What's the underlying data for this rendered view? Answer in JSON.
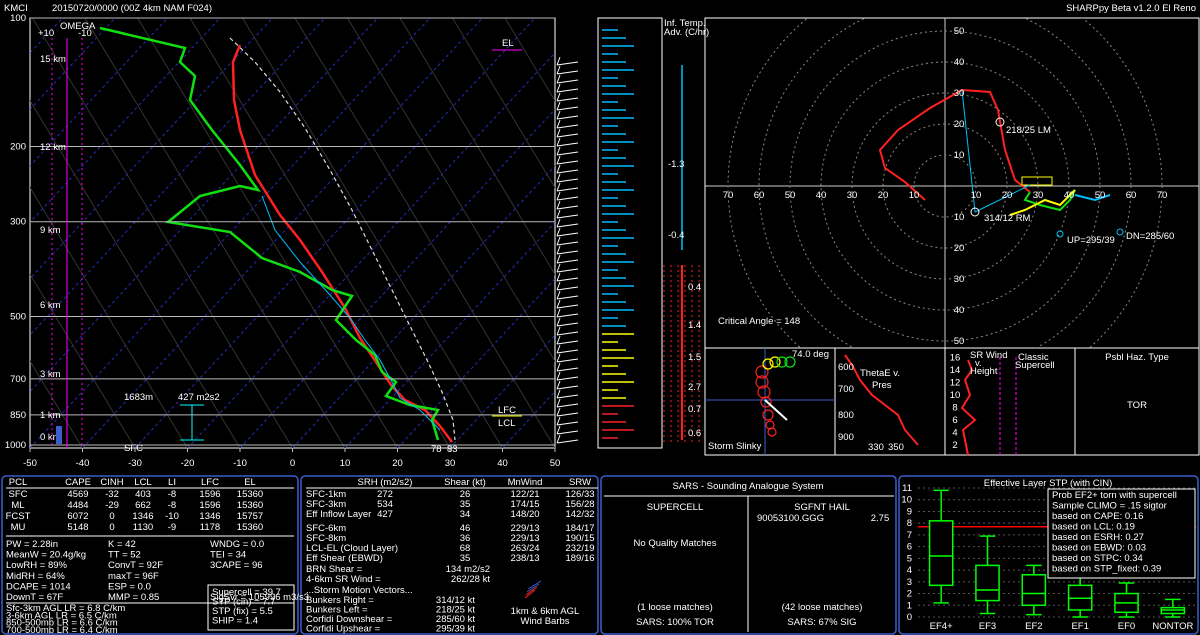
{
  "header": {
    "station": "KMCI",
    "run": "20150720/0000  (00Z  4km NAM  F024)",
    "version": "SHARPpy Beta v1.2.0 El Reno"
  },
  "skewt": {
    "pressure_ticks": [
      100,
      200,
      300,
      500,
      700,
      850,
      1000
    ],
    "temp_ticks": [
      -50,
      -40,
      -30,
      -20,
      -10,
      0,
      10,
      20,
      30,
      40,
      50
    ],
    "height_labels": [
      "15 km",
      "12 km",
      "9 km",
      "6 km",
      "3 km",
      "1 km",
      "0 km"
    ],
    "omega_label": "OMEGA",
    "omega_ticks": [
      "+10",
      "-10"
    ],
    "el": "EL",
    "lfc": "LFC",
    "lcl": "LCL",
    "sfc": "SFC",
    "eff_depth": "1683m",
    "eff_srh": "427 m2s2",
    "sfc_dew": "78",
    "sfc_temp": "83"
  },
  "temp_adv": {
    "title": [
      "Inf. Temp.",
      "Adv. (C/hr)"
    ],
    "values": [
      "-1.3",
      "-0.4",
      "0.4",
      "1.4",
      "1.5",
      "2.7",
      "0.7",
      "0.6"
    ]
  },
  "hodograph": {
    "ticks": [
      10,
      20,
      30,
      40,
      50,
      60,
      70
    ],
    "lm": "218/25 LM",
    "rm": "314/12 RM",
    "up": "UP=295/39",
    "dn": "DN=285/60",
    "critical_angle": "Critical Angle = 148"
  },
  "slinky": {
    "angle": "74.0 deg",
    "label": "Storm Slinky"
  },
  "thetae": {
    "title": [
      "ThetaE v.",
      "Pres"
    ],
    "pressure_ticks": [
      600,
      700,
      800,
      900
    ],
    "theta_ticks": [
      330,
      350
    ]
  },
  "srwind": {
    "title": [
      "SR Wind",
      "v.",
      "Height"
    ],
    "height_ticks": [
      2,
      4,
      6,
      8,
      10,
      12,
      14,
      16
    ],
    "classic": [
      "Classic",
      "Supercell"
    ]
  },
  "hazard": {
    "title": "Psbl Haz. Type",
    "value": "TOR"
  },
  "parcels": {
    "header": [
      "PCL",
      "CAPE",
      "CINH",
      "LCL",
      "LI",
      "LFC",
      "EL"
    ],
    "rows": [
      [
        "SFC",
        "4569",
        "-32",
        "403",
        "-8",
        "1596",
        "15360"
      ],
      [
        "ML",
        "4484",
        "-29",
        "662",
        "-8",
        "1596",
        "15360"
      ],
      [
        "FCST",
        "6072",
        "0",
        "1346",
        "-10",
        "1346",
        "15757"
      ],
      [
        "MU",
        "5148",
        "0",
        "1130",
        "-9",
        "1178",
        "15360"
      ]
    ]
  },
  "indices": [
    [
      "PW = 2.28in",
      "K = 42",
      "WNDG = 0.0"
    ],
    [
      "MeanW = 20.4g/kg",
      "TT = 52",
      "TEI = 34"
    ],
    [
      "LowRH = 89%",
      "ConvT = 92F",
      "3CAPE = 96"
    ],
    [
      "MidRH = 64%",
      "maxT = 96F"
    ],
    [
      "DCAPE = 1014",
      "ESP = 0.0"
    ],
    [
      "DownT = 67F",
      "MMP = 0.85",
      "SigSvr = 105996 m3/s3"
    ]
  ],
  "lapse_rates": [
    "Sfc-3km AGL LR = 6.8 C/km",
    "3-6km AGL LR = 6.5 C/km",
    "850-500mb LR = 6.6 C/km",
    "700-500mb LR = 6.4 C/km"
  ],
  "composites": [
    "Supercell = 39.7",
    "STP (cin) = 7.7",
    "STP (fix) = 5.5",
    "SHIP = 1.4"
  ],
  "kinematics": {
    "header": [
      "SRH (m2/s2)",
      "Shear (kt)",
      "MnWind",
      "SRW"
    ],
    "rows": [
      {
        "label": "SFC-1km",
        "srh": "272",
        "shear": "26",
        "mnwind": "122/21",
        "srw": "126/33"
      },
      {
        "label": "SFC-3km",
        "srh": "534",
        "shear": "35",
        "mnwind": "174/15",
        "srw": "156/28"
      },
      {
        "label": "Eff Inflow Layer",
        "srh": "427",
        "shear": "34",
        "mnwind": "148/20",
        "srw": "142/32"
      },
      {
        "label": "SFC-6km",
        "shear": "46",
        "mnwind": "229/13",
        "srw": "184/17"
      },
      {
        "label": "SFC-8km",
        "shear": "36",
        "mnwind": "229/13",
        "srw": "190/15"
      },
      {
        "label": "LCL-EL (Cloud Layer)",
        "shear": "68",
        "mnwind": "263/24",
        "srw": "232/19"
      },
      {
        "label": "Eff Shear (EBWD)",
        "shear": "35",
        "mnwind": "238/13",
        "srw": "189/16"
      }
    ],
    "brn_label": "BRN Shear =",
    "brn": "134 m2/s2",
    "srwind_label": "4-6km SR Wind =",
    "srwind": "262/28 kt",
    "motion_title": "...Storm Motion Vectors...",
    "motions": [
      {
        "label": "Bunkers Right =",
        "value": "314/12 kt"
      },
      {
        "label": "Bunkers Left =",
        "value": "218/25 kt"
      },
      {
        "label": "Corfidi Downshear =",
        "value": "285/60 kt"
      },
      {
        "label": "Corfidi Upshear =",
        "value": "295/39 kt"
      }
    ],
    "barbs_label": [
      "1km & 6km AGL",
      "Wind Barbs"
    ]
  },
  "sars": {
    "title": "SARS - Sounding Analogue System",
    "supercell": "SUPERCELL",
    "hail": "SGFNT HAIL",
    "supercell_matches": "No Quality Matches",
    "hail_match": "90053100.GGG",
    "hail_size": "2.75",
    "supercell_loose": "(1 loose matches)",
    "hail_loose": "(42 loose matches)",
    "supercell_summary": "SARS: 100% TOR",
    "hail_summary": "SARS: 67% SIG"
  },
  "chart_data": {
    "type": "box",
    "title": "Effective Layer STP (with CIN)",
    "categories": [
      "EF4+",
      "EF3",
      "EF2",
      "EF1",
      "EF0",
      "NONTOR"
    ],
    "boxes": [
      {
        "low": 1.2,
        "q1": 2.7,
        "median": 5.2,
        "q3": 8.2,
        "high": 10.8
      },
      {
        "low": 0.3,
        "q1": 1.4,
        "median": 2.3,
        "q3": 4.4,
        "high": 6.9
      },
      {
        "low": 0.2,
        "q1": 1.0,
        "median": 2.0,
        "q3": 3.6,
        "high": 4.4
      },
      {
        "low": 0.0,
        "q1": 0.6,
        "median": 1.6,
        "q3": 2.7,
        "high": 4.4
      },
      {
        "low": 0.0,
        "q1": 0.4,
        "median": 1.2,
        "q3": 2.0,
        "high": 2.9
      },
      {
        "low": 0.0,
        "q1": 0.3,
        "median": 0.6,
        "q3": 0.8,
        "high": 1.5
      }
    ],
    "color": "#00ff00",
    "reference_line": 7.7,
    "reference_color": "#ff0000",
    "ylim": [
      0,
      11
    ],
    "yticks": [
      0,
      1,
      2,
      3,
      4,
      5,
      6,
      7,
      8,
      9,
      10,
      11
    ],
    "grid": true,
    "prob_box": [
      "Prob EF2+ torn with supercell",
      "Sample CLIMO = .15 sigtor",
      "based on CAPE: 0.16",
      "based on LCL: 0.19",
      "based on ESRH: 0.27",
      "based on EBWD: 0.03",
      "based on STPC: 0.34",
      "based on STP_fixed: 0.39"
    ]
  }
}
